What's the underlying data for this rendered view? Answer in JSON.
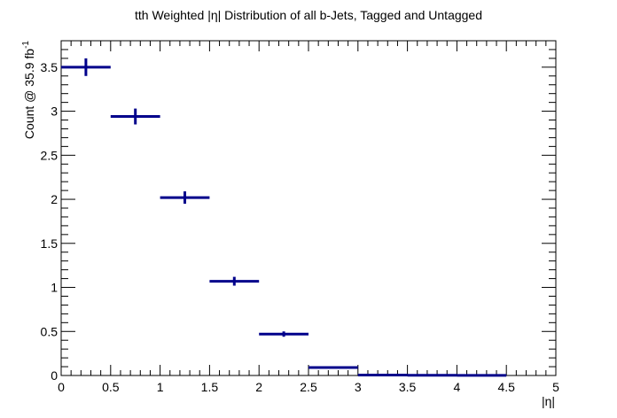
{
  "chart_data": {
    "type": "histogram-errorbar",
    "title": "tth Weighted |η| Distribution of all b-Jets, Tagged and Untagged",
    "xlabel": "|η|",
    "ylabel": "Count @ 35.9 fb",
    "ylabel_superscript": "-1",
    "xlim": [
      0,
      5
    ],
    "ylim": [
      0,
      3.8
    ],
    "x_ticks": [
      0,
      0.5,
      1,
      1.5,
      2,
      2.5,
      3,
      3.5,
      4,
      4.5,
      5
    ],
    "x_tick_labels": [
      "0",
      "0.5",
      "1",
      "1.5",
      "2",
      "2.5",
      "3",
      "3.5",
      "4",
      "4.5",
      "5"
    ],
    "y_ticks": [
      0,
      0.5,
      1,
      1.5,
      2,
      2.5,
      3,
      3.5
    ],
    "y_tick_labels": [
      "0",
      "0.5",
      "1",
      "1.5",
      "2",
      "2.5",
      "3",
      "3.5"
    ],
    "marker_color": "#00008b",
    "bins": [
      {
        "x_low": 0.0,
        "x_high": 0.5,
        "value": 3.5,
        "error": 0.1
      },
      {
        "x_low": 0.5,
        "x_high": 1.0,
        "value": 2.94,
        "error": 0.09
      },
      {
        "x_low": 1.0,
        "x_high": 1.5,
        "value": 2.02,
        "error": 0.07
      },
      {
        "x_low": 1.5,
        "x_high": 2.0,
        "value": 1.07,
        "error": 0.05
      },
      {
        "x_low": 2.0,
        "x_high": 2.5,
        "value": 0.47,
        "error": 0.03
      },
      {
        "x_low": 2.5,
        "x_high": 3.0,
        "value": 0.09,
        "error": 0.012
      },
      {
        "x_low": 3.0,
        "x_high": 3.5,
        "value": 0.005,
        "error": 0.002
      },
      {
        "x_low": 3.5,
        "x_high": 4.0,
        "value": 0.002,
        "error": 0.001
      },
      {
        "x_low": 4.0,
        "x_high": 4.5,
        "value": 0.001,
        "error": 0.001
      }
    ]
  }
}
